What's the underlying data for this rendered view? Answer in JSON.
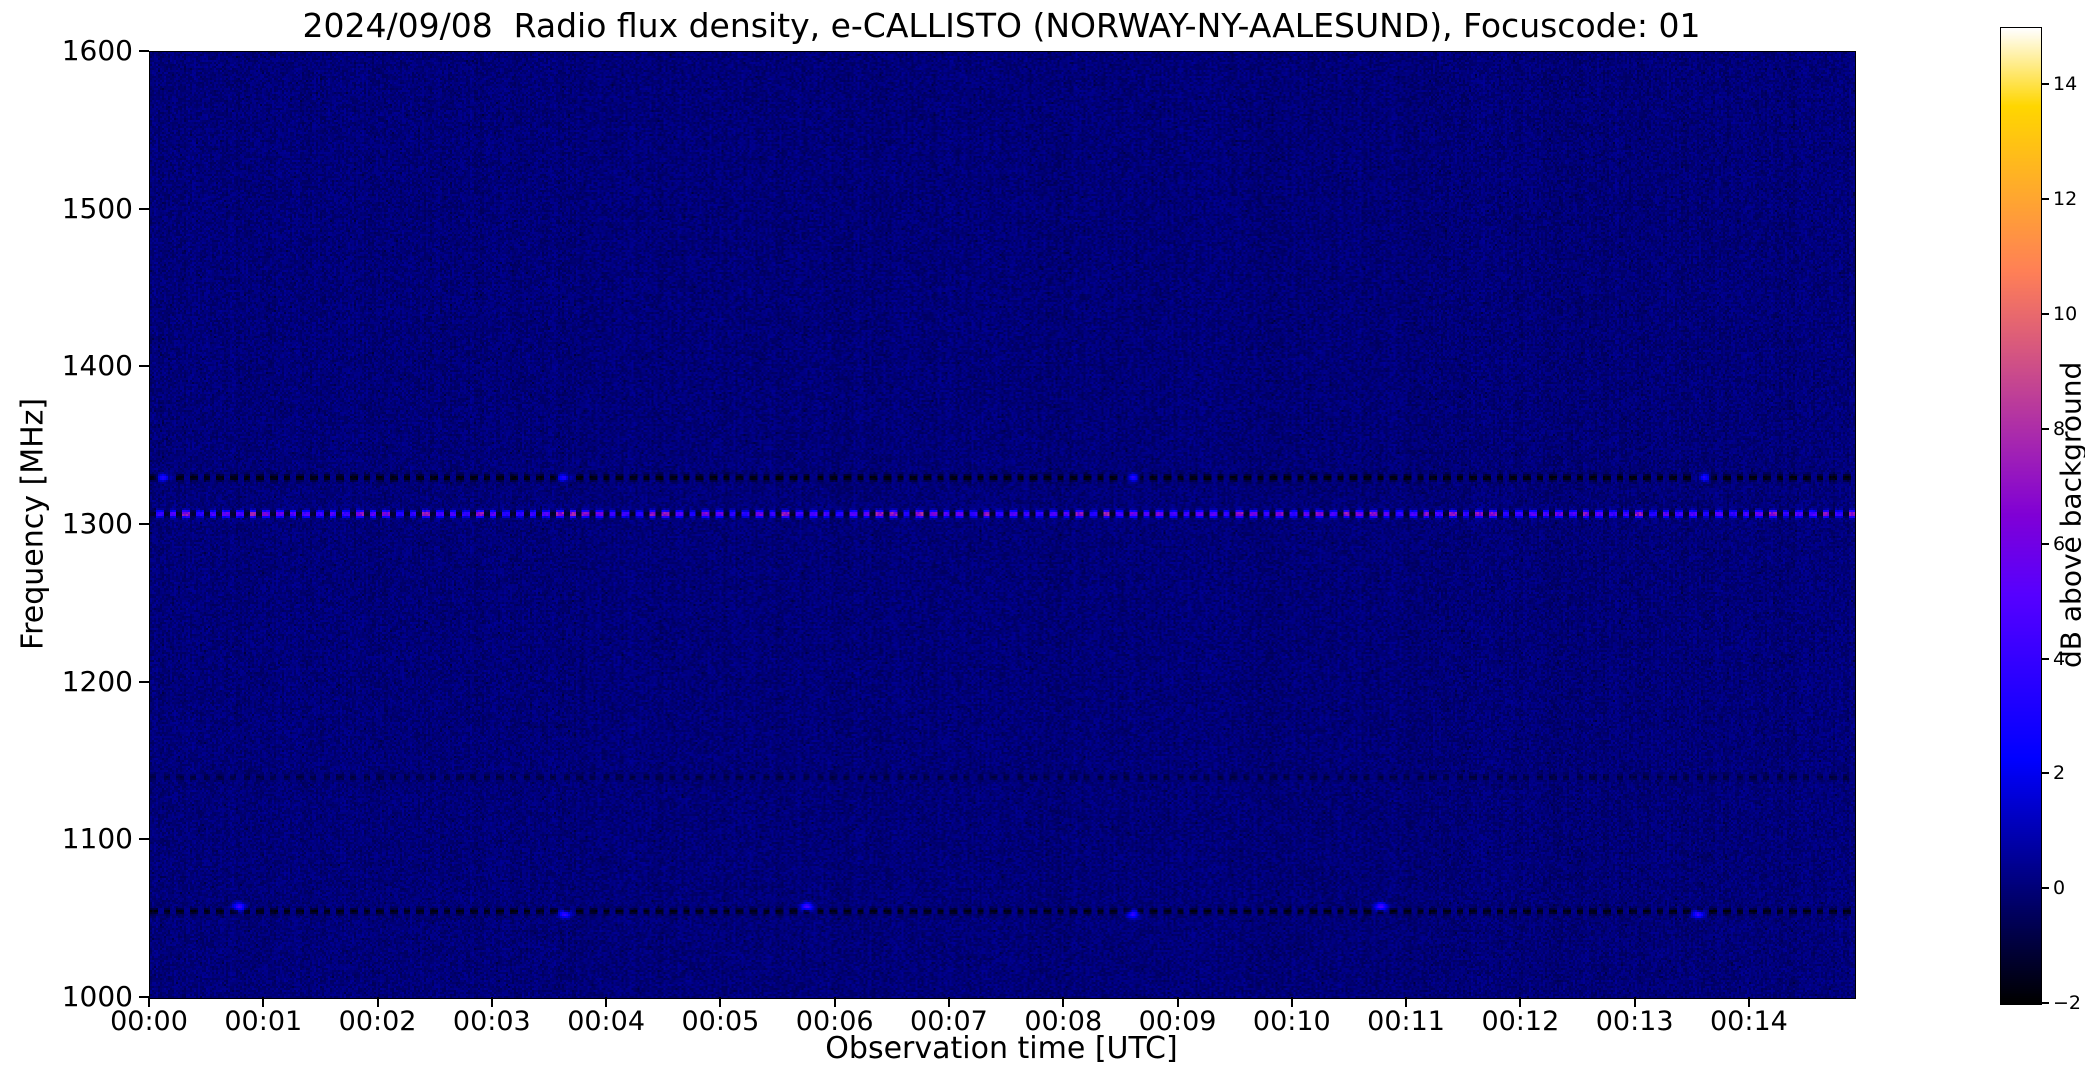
{
  "chart_data": {
    "type": "heatmap",
    "title": "2024/09/08  Radio flux density, e-CALLISTO (NORWAY-NY-AALESUND), Focuscode: 01",
    "xlabel": "Observation time [UTC]",
    "ylabel": "Frequency [MHz]",
    "x_ticks": [
      {
        "minute": 0,
        "label": "00:00"
      },
      {
        "minute": 1,
        "label": "00:01"
      },
      {
        "minute": 2,
        "label": "00:02"
      },
      {
        "minute": 3,
        "label": "00:03"
      },
      {
        "minute": 4,
        "label": "00:04"
      },
      {
        "minute": 5,
        "label": "00:05"
      },
      {
        "minute": 6,
        "label": "00:06"
      },
      {
        "minute": 7,
        "label": "00:07"
      },
      {
        "minute": 8,
        "label": "00:08"
      },
      {
        "minute": 9,
        "label": "00:09"
      },
      {
        "minute": 10,
        "label": "00:10"
      },
      {
        "minute": 11,
        "label": "00:11"
      },
      {
        "minute": 12,
        "label": "00:12"
      },
      {
        "minute": 13,
        "label": "00:13"
      },
      {
        "minute": 14,
        "label": "00:14"
      }
    ],
    "x_range_minutes": [
      0,
      14.92
    ],
    "y_ticks": [
      1000,
      1100,
      1200,
      1300,
      1400,
      1500,
      1600
    ],
    "ylim": [
      1000,
      1600
    ],
    "colorbar": {
      "label": "dB above background",
      "vmin": -2,
      "vmax": 15,
      "colormap": "gnuplot2",
      "ticks": [
        {
          "v": -2,
          "label": "−2"
        },
        {
          "v": 0,
          "label": "0"
        },
        {
          "v": 2,
          "label": "2"
        },
        {
          "v": 4,
          "label": "4"
        },
        {
          "v": 6,
          "label": "6"
        },
        {
          "v": 8,
          "label": "8"
        },
        {
          "v": 10,
          "label": "10"
        },
        {
          "v": 12,
          "label": "12"
        },
        {
          "v": 14,
          "label": "14"
        }
      ]
    },
    "background": {
      "mean_db": 0,
      "noise_db": 0.45
    },
    "features": [
      {
        "freq_mhz": 1330,
        "kind": "dash_dark",
        "halfwidth_mhz": 2.2,
        "period_s": 7,
        "duty": 0.55,
        "dash_db": -1.8,
        "gap_db": 0.25,
        "blobs": [
          {
            "t_min": 0.12,
            "db": 3.6
          },
          {
            "t_min": 3.62,
            "db": 3.3
          },
          {
            "t_min": 8.6,
            "db": 3.5
          },
          {
            "t_min": 13.6,
            "db": 3.4
          }
        ]
      },
      {
        "freq_mhz": 1307,
        "kind": "dots_bright",
        "halfwidth_mhz": 2.0,
        "period_s": 7,
        "duty": 0.45,
        "dash_db": -1.3,
        "dot_db_min": 3.5,
        "dot_db_max": 8.0,
        "blobs": []
      },
      {
        "freq_mhz": 1140,
        "kind": "dash_dark",
        "halfwidth_mhz": 2.0,
        "period_s": 7,
        "duty": 0.5,
        "dash_db": -0.9,
        "gap_db": 0.15,
        "blobs": []
      },
      {
        "freq_mhz": 1055,
        "kind": "dash_dark",
        "halfwidth_mhz": 2.0,
        "period_s": 7,
        "duty": 0.55,
        "dash_db": -1.7,
        "gap_db": 0.25,
        "blobs": [
          {
            "t_min": 0.78,
            "db": 4.3,
            "freq_mhz": 1058
          },
          {
            "t_min": 3.63,
            "db": 3.9,
            "freq_mhz": 1053
          },
          {
            "t_min": 5.75,
            "db": 4.6,
            "freq_mhz": 1058
          },
          {
            "t_min": 8.6,
            "db": 3.8,
            "freq_mhz": 1053
          },
          {
            "t_min": 10.77,
            "db": 4.7,
            "freq_mhz": 1058
          },
          {
            "t_min": 13.55,
            "db": 4.0,
            "freq_mhz": 1053
          }
        ]
      }
    ]
  }
}
